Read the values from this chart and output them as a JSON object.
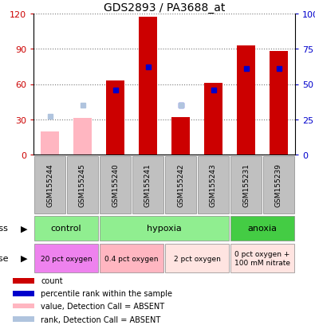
{
  "title": "GDS2893 / PA3688_at",
  "samples": [
    "GSM155244",
    "GSM155245",
    "GSM155240",
    "GSM155241",
    "GSM155242",
    "GSM155243",
    "GSM155231",
    "GSM155239"
  ],
  "count_values": [
    null,
    null,
    63,
    117,
    32,
    61,
    93,
    88
  ],
  "count_absent": [
    20,
    31,
    null,
    null,
    null,
    null,
    null,
    null
  ],
  "percentile_values": [
    null,
    null,
    46,
    62,
    35,
    46,
    61,
    61
  ],
  "percentile_absent": [
    27,
    35,
    null,
    null,
    35,
    null,
    null,
    null
  ],
  "ylim_left": [
    0,
    120
  ],
  "ylim_right": [
    0,
    100
  ],
  "yticks_left": [
    0,
    30,
    60,
    90,
    120
  ],
  "ytick_labels_left": [
    "0",
    "30",
    "60",
    "90",
    "120"
  ],
  "ytick_labels_right": [
    "0",
    "25",
    "50",
    "75",
    "100%"
  ],
  "yticks_right": [
    0,
    25,
    50,
    75,
    100
  ],
  "stress_groups": [
    {
      "label": "control",
      "start": 0,
      "end": 2,
      "color": "#90EE90"
    },
    {
      "label": "hypoxia",
      "start": 2,
      "end": 6,
      "color": "#90EE90"
    },
    {
      "label": "anoxia",
      "start": 6,
      "end": 8,
      "color": "#44CC44"
    }
  ],
  "dose_groups": [
    {
      "label": "20 pct oxygen",
      "start": 0,
      "end": 2,
      "color": "#EE82EE"
    },
    {
      "label": "0.4 pct oxygen",
      "start": 2,
      "end": 4,
      "color": "#FFB6C1"
    },
    {
      "label": "2 pct oxygen",
      "start": 4,
      "end": 6,
      "color": "#FFE4E1"
    },
    {
      "label": "0 pct oxygen +\n100 mM nitrate",
      "start": 6,
      "end": 8,
      "color": "#FFE4E1"
    }
  ],
  "legend_items": [
    {
      "color": "#CC0000",
      "label": "count"
    },
    {
      "color": "#0000CC",
      "label": "percentile rank within the sample"
    },
    {
      "color": "#FFB6C1",
      "label": "value, Detection Call = ABSENT"
    },
    {
      "color": "#B0C4DE",
      "label": "rank, Detection Call = ABSENT"
    }
  ],
  "count_color": "#CC0000",
  "count_absent_color": "#FFB6C1",
  "percentile_color": "#0000CC",
  "percentile_absent_color": "#B0C4DE",
  "axis_color_left": "#CC0000",
  "axis_color_right": "#0000CC",
  "bg_color": "#FFFFFF",
  "sample_bg_color": "#C0C0C0",
  "sample_border_color": "#888888"
}
